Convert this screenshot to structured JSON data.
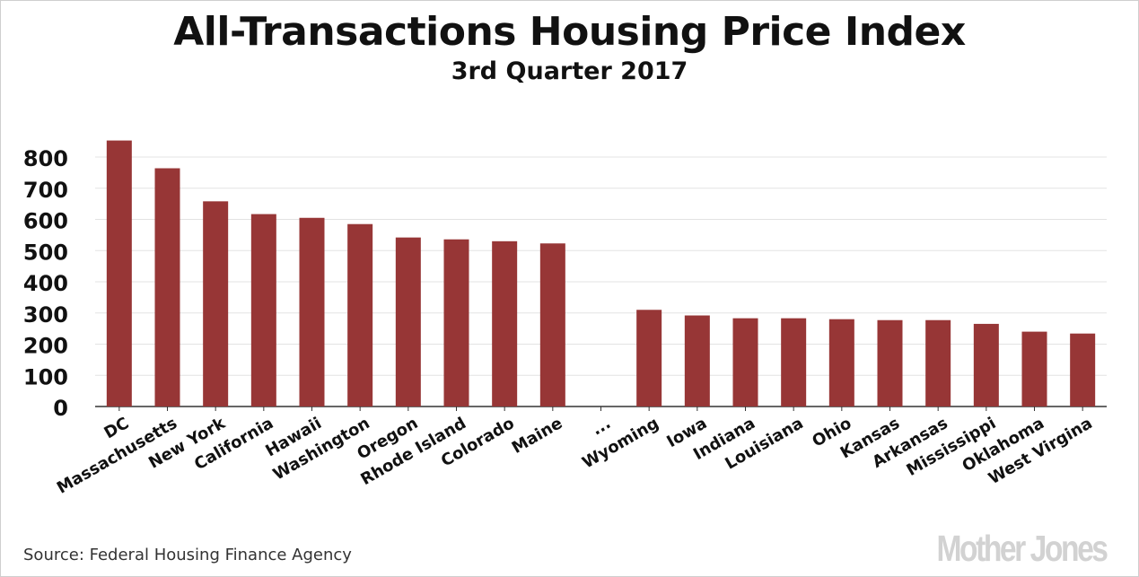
{
  "chart_data": {
    "type": "bar",
    "title": "All-Transactions Housing Price Index",
    "subtitle": "3rd Quarter 2017",
    "categories": [
      "DC",
      "Massachusetts",
      "New York",
      "California",
      "Hawaii",
      "Washington",
      "Oregon",
      "Rhode Island",
      "Colorado",
      "Maine",
      "...",
      "Wyoming",
      "Iowa",
      "Indiana",
      "Louisiana",
      "Ohio",
      "Kansas",
      "Arkansas",
      "Mississippi",
      "Oklahoma",
      "West Virgina"
    ],
    "values": [
      853,
      764,
      658,
      617,
      605,
      585,
      542,
      536,
      530,
      523,
      null,
      310,
      292,
      283,
      283,
      280,
      277,
      277,
      265,
      240,
      234
    ],
    "ylim": [
      0,
      850
    ],
    "yticks": [
      "0",
      "100",
      "200",
      "300",
      "400",
      "500",
      "600",
      "700",
      "800"
    ],
    "xlabel": "",
    "ylabel": "",
    "grid": true,
    "bar_color": "#973636"
  },
  "source": "Source: Federal Housing Finance Agency",
  "logo": "Mother Jones"
}
